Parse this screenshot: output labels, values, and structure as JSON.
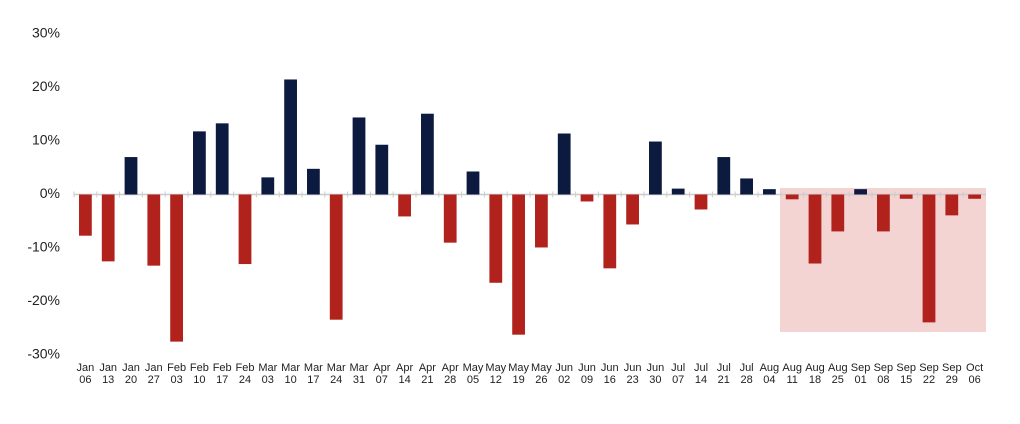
{
  "chart_data": {
    "type": "bar",
    "categories": [
      "Jan 06",
      "Jan 13",
      "Jan 20",
      "Jan 27",
      "Feb 03",
      "Feb 10",
      "Feb 17",
      "Feb 24",
      "Mar 03",
      "Mar 10",
      "Mar 17",
      "Mar 24",
      "Mar 31",
      "Apr 07",
      "Apr 14",
      "Apr 21",
      "Apr 28",
      "May 05",
      "May 12",
      "May 19",
      "May 26",
      "Jun 02",
      "Jun 09",
      "Jun 16",
      "Jun 23",
      "Jun 30",
      "Jul 07",
      "Jul 14",
      "Jul 21",
      "Jul 28",
      "Aug 04",
      "Aug 11",
      "Aug 18",
      "Aug 25",
      "Sep 01",
      "Sep 08",
      "Sep 15",
      "Sep 22",
      "Sep 29",
      "Oct 06"
    ],
    "values": [
      -7.7,
      -12.5,
      7,
      -13.3,
      -27.5,
      11.8,
      13.3,
      -13,
      3.2,
      21.5,
      4.8,
      -23.4,
      14.4,
      9.3,
      -4.1,
      15.1,
      -9,
      4.3,
      -16.5,
      -26.2,
      -9.9,
      11.4,
      -1.3,
      -13.8,
      -5.6,
      9.9,
      1.1,
      -2.8,
      7,
      3,
      1,
      -0.9,
      -12.9,
      -6.9,
      1,
      -6.9,
      -0.8,
      -23.9,
      -3.9,
      -0.8
    ],
    "positive_color": "#0d1a3f",
    "negative_color": "#b0221b",
    "ylim": [
      -30,
      30
    ],
    "yticks": [
      {
        "value": -30,
        "label": "-30%"
      },
      {
        "value": -20,
        "label": "-20%"
      },
      {
        "value": -10,
        "label": "-10%"
      },
      {
        "value": 0,
        "label": "0%"
      },
      {
        "value": 10,
        "label": "10%"
      },
      {
        "value": 20,
        "label": "20%"
      },
      {
        "value": 30,
        "label": "30%"
      }
    ],
    "grid": false
  }
}
